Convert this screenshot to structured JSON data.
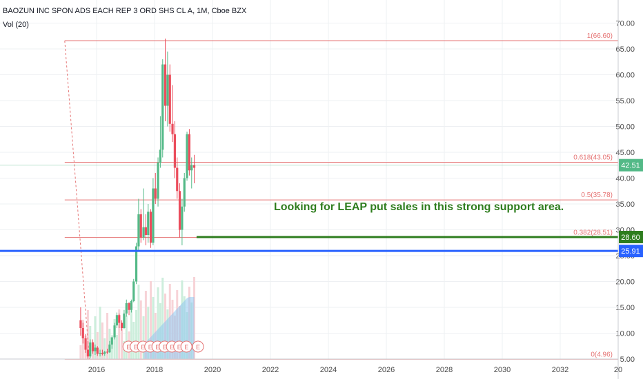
{
  "header": {
    "title": "BAOZUN INC SPON ADS EACH REP 3 ORD SHS CL A, 1M, Cboe BZX",
    "volume_label": "Vol (20)"
  },
  "annotation": "Looking for LEAP put sales in this strong support area.",
  "colors": {
    "up": "#53b987",
    "down": "#eb4d5c",
    "fib": "#e57373",
    "support": "#2e7d1e",
    "blue_line": "#2962ff",
    "price_badge": "#53b987",
    "support_badge": "#2e7d1e",
    "blue_badge": "#2962ff",
    "grid": "#eef0f3",
    "axis_text": "#4a4a4a"
  },
  "chart_data": {
    "type": "candlestick",
    "y_ticks": [
      "5.00",
      "10.00",
      "15.00",
      "20.00",
      "25.00",
      "30.00",
      "35.00",
      "40.00",
      "45.00",
      "50.00",
      "55.00",
      "60.00",
      "65.00",
      "70.00"
    ],
    "x_ticks": [
      "2016",
      "2018",
      "2020",
      "2022",
      "2024",
      "2026",
      "2028",
      "2030",
      "2032",
      "20"
    ],
    "ylim": [
      0,
      70.8
    ],
    "fib_levels": [
      {
        "label": "1(66.60)",
        "value": 66.6
      },
      {
        "label": "0.618(43.05)",
        "value": 43.05
      },
      {
        "label": "0.5(35.78)",
        "value": 35.78
      },
      {
        "label": "0.382(28.51)",
        "value": 28.51
      },
      {
        "label": "0(4.96)",
        "value": 4.96
      }
    ],
    "price_badges": [
      {
        "label": "42.51",
        "value": 42.51,
        "kind": "price"
      },
      {
        "label": "28.60",
        "value": 28.6,
        "kind": "support"
      },
      {
        "label": "25.91",
        "value": 25.91,
        "kind": "blue"
      }
    ],
    "support_line": {
      "value": 28.6,
      "from_year": 2019.45
    },
    "blue_line": {
      "value": 25.91
    },
    "candles": [
      {
        "t": 2015.45,
        "o": 12.5,
        "h": 15.0,
        "l": 9.5,
        "c": 11.0
      },
      {
        "t": 2015.53,
        "o": 11.0,
        "h": 12.0,
        "l": 8.0,
        "c": 9.0
      },
      {
        "t": 2015.62,
        "o": 9.0,
        "h": 9.8,
        "l": 6.2,
        "c": 6.8
      },
      {
        "t": 2015.7,
        "o": 6.8,
        "h": 8.5,
        "l": 5.0,
        "c": 5.5
      },
      {
        "t": 2015.78,
        "o": 5.5,
        "h": 8.8,
        "l": 5.2,
        "c": 8.2
      },
      {
        "t": 2015.87,
        "o": 8.2,
        "h": 8.8,
        "l": 6.0,
        "c": 6.5
      },
      {
        "t": 2015.95,
        "o": 6.5,
        "h": 7.8,
        "l": 5.8,
        "c": 7.2
      },
      {
        "t": 2016.03,
        "o": 7.2,
        "h": 7.5,
        "l": 5.6,
        "c": 6.0
      },
      {
        "t": 2016.12,
        "o": 6.0,
        "h": 6.8,
        "l": 5.5,
        "c": 6.2
      },
      {
        "t": 2016.2,
        "o": 6.2,
        "h": 6.8,
        "l": 5.7,
        "c": 6.0
      },
      {
        "t": 2016.28,
        "o": 6.0,
        "h": 6.6,
        "l": 5.6,
        "c": 6.4
      },
      {
        "t": 2016.37,
        "o": 6.4,
        "h": 7.0,
        "l": 6.0,
        "c": 6.3
      },
      {
        "t": 2016.45,
        "o": 6.3,
        "h": 8.5,
        "l": 6.2,
        "c": 7.8
      },
      {
        "t": 2016.53,
        "o": 7.8,
        "h": 9.6,
        "l": 7.0,
        "c": 9.2
      },
      {
        "t": 2016.62,
        "o": 9.2,
        "h": 12.0,
        "l": 8.8,
        "c": 11.5
      },
      {
        "t": 2016.7,
        "o": 11.5,
        "h": 14.0,
        "l": 11.0,
        "c": 13.5
      },
      {
        "t": 2016.78,
        "o": 13.5,
        "h": 13.8,
        "l": 11.0,
        "c": 12.0
      },
      {
        "t": 2016.87,
        "o": 12.0,
        "h": 12.5,
        "l": 10.5,
        "c": 11.0
      },
      {
        "t": 2016.95,
        "o": 11.0,
        "h": 14.5,
        "l": 10.8,
        "c": 13.8
      },
      {
        "t": 2017.03,
        "o": 13.8,
        "h": 16.5,
        "l": 13.2,
        "c": 15.8
      },
      {
        "t": 2017.12,
        "o": 15.8,
        "h": 16.0,
        "l": 13.5,
        "c": 14.5
      },
      {
        "t": 2017.2,
        "o": 14.5,
        "h": 16.5,
        "l": 14.0,
        "c": 16.2
      },
      {
        "t": 2017.28,
        "o": 16.2,
        "h": 20.5,
        "l": 16.0,
        "c": 20.0
      },
      {
        "t": 2017.37,
        "o": 20.0,
        "h": 27.5,
        "l": 19.5,
        "c": 26.8
      },
      {
        "t": 2017.45,
        "o": 26.8,
        "h": 36.0,
        "l": 26.0,
        "c": 33.0
      },
      {
        "t": 2017.53,
        "o": 33.0,
        "h": 34.0,
        "l": 27.5,
        "c": 28.5
      },
      {
        "t": 2017.62,
        "o": 28.5,
        "h": 38.0,
        "l": 28.0,
        "c": 30.5
      },
      {
        "t": 2017.7,
        "o": 30.5,
        "h": 33.0,
        "l": 27.0,
        "c": 29.0
      },
      {
        "t": 2017.78,
        "o": 29.0,
        "h": 35.0,
        "l": 27.5,
        "c": 33.5
      },
      {
        "t": 2017.87,
        "o": 33.5,
        "h": 34.0,
        "l": 26.5,
        "c": 27.5
      },
      {
        "t": 2017.95,
        "o": 27.5,
        "h": 40.0,
        "l": 27.0,
        "c": 38.0
      },
      {
        "t": 2018.03,
        "o": 38.0,
        "h": 41.0,
        "l": 35.0,
        "c": 36.0
      },
      {
        "t": 2018.12,
        "o": 36.0,
        "h": 44.0,
        "l": 34.5,
        "c": 43.0
      },
      {
        "t": 2018.2,
        "o": 43.0,
        "h": 52.0,
        "l": 42.0,
        "c": 45.5
      },
      {
        "t": 2018.28,
        "o": 45.5,
        "h": 63.0,
        "l": 44.0,
        "c": 62.0
      },
      {
        "t": 2018.37,
        "o": 62.0,
        "h": 67.0,
        "l": 51.0,
        "c": 54.0
      },
      {
        "t": 2018.45,
        "o": 54.0,
        "h": 64.5,
        "l": 50.0,
        "c": 60.0
      },
      {
        "t": 2018.53,
        "o": 60.0,
        "h": 62.0,
        "l": 49.0,
        "c": 50.5
      },
      {
        "t": 2018.62,
        "o": 50.5,
        "h": 58.0,
        "l": 47.0,
        "c": 48.5
      },
      {
        "t": 2018.7,
        "o": 48.5,
        "h": 51.0,
        "l": 40.0,
        "c": 42.0
      },
      {
        "t": 2018.78,
        "o": 42.0,
        "h": 44.0,
        "l": 36.0,
        "c": 37.5
      },
      {
        "t": 2018.87,
        "o": 37.5,
        "h": 39.0,
        "l": 28.5,
        "c": 30.0
      },
      {
        "t": 2018.95,
        "o": 30.0,
        "h": 36.0,
        "l": 27.0,
        "c": 34.5
      },
      {
        "t": 2019.03,
        "o": 34.5,
        "h": 41.0,
        "l": 33.5,
        "c": 40.0
      },
      {
        "t": 2019.12,
        "o": 40.0,
        "h": 49.0,
        "l": 39.5,
        "c": 48.5
      },
      {
        "t": 2019.2,
        "o": 48.5,
        "h": 49.5,
        "l": 40.5,
        "c": 41.5
      },
      {
        "t": 2019.28,
        "o": 41.5,
        "h": 44.0,
        "l": 38.0,
        "c": 42.5
      },
      {
        "t": 2019.37,
        "o": 42.5,
        "h": 44.5,
        "l": 39.0,
        "c": 42.0
      }
    ]
  }
}
